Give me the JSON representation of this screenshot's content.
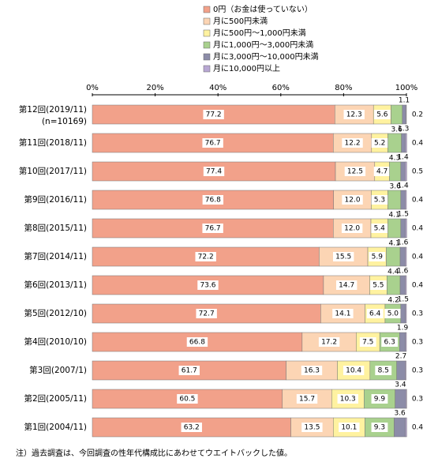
{
  "chart_data": {
    "type": "stacked_bar_horizontal",
    "categories": [
      "第12回(2019/11)",
      "第11回(2018/11)",
      "第10回(2017/11)",
      "第9回(2016/11)",
      "第8回(2015/11)",
      "第7回(2014/11)",
      "第6回(2013/11)",
      "第5回(2012/10)",
      "第4回(2010/10)",
      "第3回(2007/1)",
      "第2回(2005/11)",
      "第1回(2004/11)"
    ],
    "sample_size_note": "(n=10169)",
    "series": [
      {
        "name": "0円（お金は使っていない）",
        "color": "#f2a18a",
        "values": [
          77.2,
          76.7,
          77.4,
          76.8,
          76.7,
          72.2,
          73.6,
          72.7,
          66.8,
          61.7,
          60.5,
          63.2
        ],
        "value_labels": [
          "77.2",
          "76.7",
          "77.4",
          "76.8",
          "76.7",
          "72.2",
          "73.6",
          "72.7",
          "66.8",
          "61.7",
          "60.5",
          "63.2"
        ]
      },
      {
        "name": "月に500円未満",
        "color": "#fcd5b4",
        "values": [
          12.3,
          12.2,
          12.5,
          12.0,
          12.0,
          15.5,
          14.7,
          14.1,
          17.2,
          16.3,
          15.7,
          13.5
        ],
        "value_labels": [
          "12.3",
          "12.2",
          "12.5",
          "12.0",
          "12.0",
          "15.5",
          "14.7",
          "14.1",
          "17.2",
          "16.3",
          "15.7",
          "13.5"
        ]
      },
      {
        "name": "月に500円～1,000円未満",
        "color": "#fff2a0",
        "values": [
          5.6,
          5.2,
          4.7,
          5.3,
          5.4,
          5.9,
          5.5,
          6.4,
          7.5,
          10.4,
          10.3,
          10.1
        ],
        "value_labels": [
          "5.6",
          "5.2",
          "4.7",
          "5.3",
          "5.4",
          "5.9",
          "5.5",
          "6.4",
          "7.5",
          "10.4",
          "10.3",
          "10.1"
        ]
      },
      {
        "name": "月に1,000円～3,000円未満",
        "color": "#a9d18e",
        "values": [
          3.6,
          4.3,
          3.6,
          4.1,
          4.1,
          4.4,
          4.2,
          5.0,
          6.3,
          8.5,
          9.9,
          9.3
        ],
        "value_labels": [
          "3.6",
          "4.3",
          "3.6",
          "4.1",
          "4.1",
          "4.4",
          "4.2",
          "5.0",
          "6.3",
          "8.5",
          "9.9",
          "9.3"
        ]
      },
      {
        "name": "月に3,000円～10,000円未満",
        "color": "#8c8ca8",
        "values": [
          1.1,
          1.3,
          1.4,
          1.4,
          1.5,
          1.6,
          1.6,
          1.5,
          1.9,
          2.7,
          3.4,
          3.6
        ],
        "value_labels": [
          "1.1",
          "1.3",
          "1.4",
          "1.4",
          "1.5",
          "1.6",
          "1.6",
          "1.5",
          "1.9",
          "2.7",
          "3.4",
          "3.6"
        ]
      },
      {
        "name": "月に10,000円以上",
        "color": "#b8a7d3",
        "values": [
          0.2,
          0.4,
          0.5,
          0.4,
          0.4,
          0.4,
          0.4,
          0.3,
          0.3,
          0.3,
          0.3,
          0.4
        ],
        "value_labels": [
          "0.2",
          "0.4",
          "0.5",
          "0.4",
          "0.4",
          "0.4",
          "0.4",
          "0.3",
          "0.3",
          "0.3",
          "0.3",
          "0.4"
        ]
      }
    ],
    "xlim": [
      0,
      100
    ],
    "xticks": [
      {
        "value": 0,
        "label": "0%"
      },
      {
        "value": 20,
        "label": "20%"
      },
      {
        "value": 40,
        "label": "40%"
      },
      {
        "value": 60,
        "label": "60%"
      },
      {
        "value": 80,
        "label": "80%"
      },
      {
        "value": 100,
        "label": "100%"
      }
    ],
    "footnote": "注）過去調査は、今回調査の性年代構成比にあわせてウエイトバックした値。"
  }
}
